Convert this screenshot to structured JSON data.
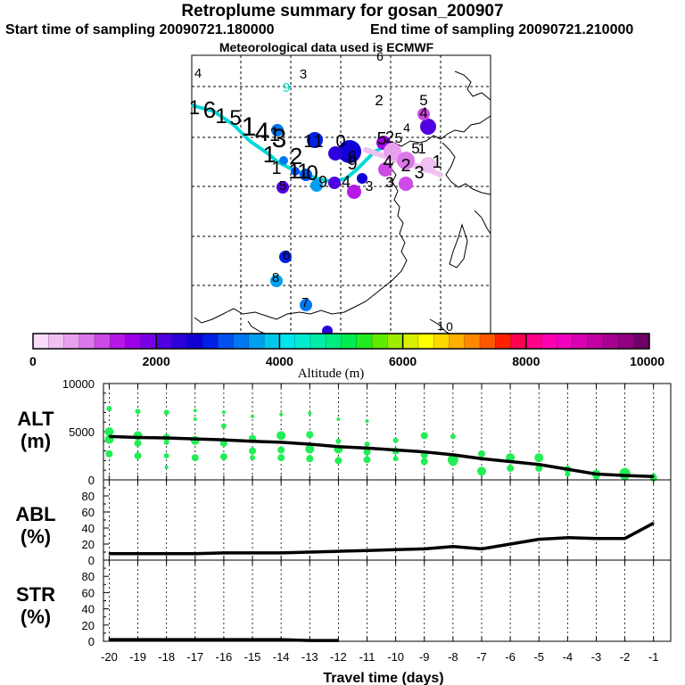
{
  "header": {
    "title": "Retroplume summary for gosan_200907",
    "start_label": "Start time of sampling 20090721.180000",
    "end_label": "End time of sampling 20090721.210000",
    "met_label": "Meteorological data used is ECMWF"
  },
  "colorbar": {
    "xlabel": "Altitude (m)",
    "ticks": [
      "0",
      "2000",
      "4000",
      "6000",
      "8000",
      "10000"
    ],
    "colors": [
      "#f8dcf8",
      "#f0c0f0",
      "#e8a0ee",
      "#dc78ea",
      "#cc4ae6",
      "#b818e6",
      "#9c00e8",
      "#7800e8",
      "#5000e0",
      "#2c00dc",
      "#1000d6",
      "#0020e6",
      "#0050f0",
      "#0078f0",
      "#00a0f0",
      "#00c8ec",
      "#00e4ec",
      "#00ecd0",
      "#00eca8",
      "#00ec80",
      "#00ec50",
      "#20ec20",
      "#60ec00",
      "#a0ec00",
      "#d8f000",
      "#ffff00",
      "#ffd800",
      "#ffb000",
      "#ff8800",
      "#ff5800",
      "#ff2000",
      "#ff0050",
      "#ff0088",
      "#ff00b0",
      "#f000c0",
      "#d800b0",
      "#c000a0",
      "#a80090",
      "#900080",
      "#700068"
    ]
  },
  "map": {
    "trajectory_labels": [
      {
        "t": "4",
        "x": 222,
        "y": 87,
        "s": 15
      },
      {
        "t": "3",
        "x": 340,
        "y": 88,
        "s": 15
      },
      {
        "t": "9",
        "x": 321,
        "y": 103,
        "s": 15,
        "c": "#00d8c0"
      },
      {
        "t": "2",
        "x": 425,
        "y": 118,
        "s": 17
      },
      {
        "t": "5",
        "x": 475,
        "y": 118,
        "s": 17
      },
      {
        "t": "4",
        "x": 475,
        "y": 132,
        "s": 17
      },
      {
        "t": "6",
        "x": 426,
        "y": 68,
        "s": 14
      },
      {
        "t": "1",
        "x": 218,
        "y": 128,
        "s": 22
      },
      {
        "t": "6",
        "x": 235,
        "y": 132,
        "s": 26
      },
      {
        "t": "1",
        "x": 248,
        "y": 138,
        "s": 24
      },
      {
        "t": "5",
        "x": 264,
        "y": 140,
        "s": 24
      },
      {
        "t": "1",
        "x": 279,
        "y": 152,
        "s": 30
      },
      {
        "t": "4",
        "x": 294,
        "y": 158,
        "s": 30
      },
      {
        "t": "1",
        "x": 308,
        "y": 158,
        "s": 22
      },
      {
        "t": "3",
        "x": 313,
        "y": 165,
        "s": 30
      },
      {
        "t": "1",
        "x": 302,
        "y": 182,
        "s": 26
      },
      {
        "t": "2",
        "x": 332,
        "y": 184,
        "s": 26
      },
      {
        "t": "1",
        "x": 310,
        "y": 195,
        "s": 20
      },
      {
        "t": "1",
        "x": 346,
        "y": 165,
        "s": 20
      },
      {
        "t": "1",
        "x": 357,
        "y": 165,
        "s": 20
      },
      {
        "t": "0",
        "x": 382,
        "y": 165,
        "s": 20
      },
      {
        "t": "6",
        "x": 395,
        "y": 182,
        "s": 18
      },
      {
        "t": "9",
        "x": 395,
        "y": 190,
        "s": 20
      },
      {
        "t": "5",
        "x": 428,
        "y": 162,
        "s": 20
      },
      {
        "t": "2",
        "x": 437,
        "y": 160,
        "s": 18
      },
      {
        "t": "5",
        "x": 447,
        "y": 160,
        "s": 16
      },
      {
        "t": "4",
        "x": 456,
        "y": 148,
        "s": 14
      },
      {
        "t": "5",
        "x": 466,
        "y": 172,
        "s": 17
      },
      {
        "t": "1",
        "x": 473,
        "y": 172,
        "s": 17
      },
      {
        "t": "1",
        "x": 490,
        "y": 188,
        "s": 20
      },
      {
        "t": "2",
        "x": 455,
        "y": 192,
        "s": 20
      },
      {
        "t": "4",
        "x": 435,
        "y": 188,
        "s": 20
      },
      {
        "t": "3",
        "x": 470,
        "y": 200,
        "s": 20
      },
      {
        "t": "1",
        "x": 330,
        "y": 200,
        "s": 24
      },
      {
        "t": "1",
        "x": 340,
        "y": 200,
        "s": 24
      },
      {
        "t": "0",
        "x": 350,
        "y": 202,
        "s": 24
      },
      {
        "t": "9",
        "x": 362,
        "y": 210,
        "s": 18
      },
      {
        "t": "4",
        "x": 388,
        "y": 210,
        "s": 18
      },
      {
        "t": "3",
        "x": 414,
        "y": 214,
        "s": 16
      },
      {
        "t": "3",
        "x": 437,
        "y": 210,
        "s": 17
      },
      {
        "t": "5",
        "x": 317,
        "y": 213,
        "s": 15
      },
      {
        "t": "6",
        "x": 321,
        "y": 291,
        "s": 15
      },
      {
        "t": "8",
        "x": 309,
        "y": 316,
        "s": 15
      },
      {
        "t": "7",
        "x": 342,
        "y": 344,
        "s": 15
      },
      {
        "t": "1",
        "x": 494,
        "y": 370,
        "s": 14
      },
      {
        "t": "0",
        "x": 504,
        "y": 371,
        "s": 14
      }
    ],
    "blobs": [
      {
        "x": 311,
        "y": 146,
        "r": 7,
        "c": "#0078f0"
      },
      {
        "x": 353,
        "y": 157,
        "r": 9,
        "c": "#0020e6"
      },
      {
        "x": 392,
        "y": 170,
        "r": 13,
        "c": "#1000d6"
      },
      {
        "x": 376,
        "y": 172,
        "r": 8,
        "c": "#2c00dc"
      },
      {
        "x": 480,
        "y": 142,
        "r": 9,
        "c": "#5000e0"
      },
      {
        "x": 475,
        "y": 128,
        "r": 7,
        "c": "#cc4ae6"
      },
      {
        "x": 430,
        "y": 160,
        "r": 8,
        "c": "#9c00e8"
      },
      {
        "x": 440,
        "y": 170,
        "r": 10,
        "c": "#e8a0ee"
      },
      {
        "x": 455,
        "y": 180,
        "r": 10,
        "c": "#dc78ea"
      },
      {
        "x": 480,
        "y": 185,
        "r": 9,
        "c": "#f0c0f0"
      },
      {
        "x": 432,
        "y": 190,
        "r": 8,
        "c": "#cc4ae6"
      },
      {
        "x": 455,
        "y": 206,
        "r": 8,
        "c": "#cc4ae6"
      },
      {
        "x": 397,
        "y": 215,
        "r": 8,
        "c": "#b818e6"
      },
      {
        "x": 375,
        "y": 205,
        "r": 7,
        "c": "#5000e0"
      },
      {
        "x": 355,
        "y": 208,
        "r": 7,
        "c": "#00a0f0"
      },
      {
        "x": 343,
        "y": 196,
        "r": 7,
        "c": "#0050f0"
      },
      {
        "x": 317,
        "y": 210,
        "r": 7,
        "c": "#5000e0"
      },
      {
        "x": 320,
        "y": 288,
        "r": 7,
        "c": "#0020e6"
      },
      {
        "x": 310,
        "y": 315,
        "r": 7,
        "c": "#00a0f0"
      },
      {
        "x": 343,
        "y": 342,
        "r": 7,
        "c": "#0078f0"
      },
      {
        "x": 367,
        "y": 371,
        "r": 6,
        "c": "#2c00dc"
      },
      {
        "x": 406,
        "y": 200,
        "r": 6,
        "c": "#1000d6"
      },
      {
        "x": 318,
        "y": 180,
        "r": 5,
        "c": "#0078f0"
      },
      {
        "x": 331,
        "y": 192,
        "r": 5,
        "c": "#0050f0"
      }
    ]
  },
  "chart_data": [
    {
      "type": "line",
      "title": "",
      "ylabel": "ALT (m)",
      "xlabel": "",
      "ylim": [
        0,
        10000
      ],
      "yticks": [
        "10000",
        "5000",
        "0"
      ],
      "xlim": [
        -20.2,
        -0.4
      ],
      "x": [
        -20,
        -19,
        -18,
        -17,
        -16,
        -15,
        -14,
        -13,
        -12,
        -11,
        -10,
        -9,
        -8,
        -7,
        -6,
        -5,
        -4,
        -3,
        -2,
        -1
      ],
      "series": [
        {
          "name": "mean",
          "values": [
            4500,
            4400,
            4350,
            4250,
            4150,
            4000,
            3900,
            3700,
            3450,
            3300,
            3100,
            2900,
            2600,
            2200,
            1900,
            1600,
            1100,
            600,
            450,
            350
          ]
        }
      ],
      "scatter": [
        {
          "x": -20,
          "y": 7400,
          "r": 3
        },
        {
          "x": -20,
          "y": 5000,
          "r": 5
        },
        {
          "x": -20,
          "y": 4200,
          "r": 5
        },
        {
          "x": -20,
          "y": 2700,
          "r": 4
        },
        {
          "x": -19,
          "y": 7100,
          "r": 3
        },
        {
          "x": -19,
          "y": 4600,
          "r": 5
        },
        {
          "x": -19,
          "y": 3800,
          "r": 4
        },
        {
          "x": -19,
          "y": 2500,
          "r": 4
        },
        {
          "x": -18,
          "y": 7000,
          "r": 3
        },
        {
          "x": -18,
          "y": 4400,
          "r": 4
        },
        {
          "x": -18,
          "y": 3900,
          "r": 3
        },
        {
          "x": -18,
          "y": 2500,
          "r": 3
        },
        {
          "x": -18,
          "y": 1300,
          "r": 2
        },
        {
          "x": -17,
          "y": 7200,
          "r": 2
        },
        {
          "x": -17,
          "y": 6300,
          "r": 2
        },
        {
          "x": -17,
          "y": 4100,
          "r": 5
        },
        {
          "x": -17,
          "y": 2300,
          "r": 4
        },
        {
          "x": -16,
          "y": 7000,
          "r": 2
        },
        {
          "x": -16,
          "y": 5600,
          "r": 3
        },
        {
          "x": -16,
          "y": 3800,
          "r": 4
        },
        {
          "x": -16,
          "y": 2400,
          "r": 4
        },
        {
          "x": -15,
          "y": 6600,
          "r": 2
        },
        {
          "x": -15,
          "y": 4300,
          "r": 4
        },
        {
          "x": -15,
          "y": 3000,
          "r": 4
        },
        {
          "x": -15,
          "y": 2300,
          "r": 3
        },
        {
          "x": -14,
          "y": 6800,
          "r": 2
        },
        {
          "x": -14,
          "y": 4600,
          "r": 5
        },
        {
          "x": -14,
          "y": 3100,
          "r": 4
        },
        {
          "x": -14,
          "y": 2300,
          "r": 4
        },
        {
          "x": -13,
          "y": 6900,
          "r": 2
        },
        {
          "x": -13,
          "y": 4700,
          "r": 4
        },
        {
          "x": -13,
          "y": 3200,
          "r": 5
        },
        {
          "x": -13,
          "y": 2200,
          "r": 4
        },
        {
          "x": -12,
          "y": 6300,
          "r": 2
        },
        {
          "x": -12,
          "y": 4000,
          "r": 3
        },
        {
          "x": -12,
          "y": 3200,
          "r": 5
        },
        {
          "x": -12,
          "y": 2000,
          "r": 4
        },
        {
          "x": -11,
          "y": 6100,
          "r": 2
        },
        {
          "x": -11,
          "y": 3700,
          "r": 3
        },
        {
          "x": -11,
          "y": 2900,
          "r": 4
        },
        {
          "x": -11,
          "y": 2100,
          "r": 4
        },
        {
          "x": -10,
          "y": 4100,
          "r": 3
        },
        {
          "x": -10,
          "y": 3000,
          "r": 4
        },
        {
          "x": -10,
          "y": 2200,
          "r": 3
        },
        {
          "x": -9,
          "y": 4600,
          "r": 4
        },
        {
          "x": -9,
          "y": 2600,
          "r": 4
        },
        {
          "x": -9,
          "y": 1900,
          "r": 4
        },
        {
          "x": -8,
          "y": 4500,
          "r": 3
        },
        {
          "x": -8,
          "y": 2100,
          "r": 6
        },
        {
          "x": -8,
          "y": 1900,
          "r": 5
        },
        {
          "x": -7,
          "y": 2700,
          "r": 4
        },
        {
          "x": -7,
          "y": 900,
          "r": 5
        },
        {
          "x": -6,
          "y": 2300,
          "r": 5
        },
        {
          "x": -6,
          "y": 1200,
          "r": 4
        },
        {
          "x": -5,
          "y": 2300,
          "r": 5
        },
        {
          "x": -5,
          "y": 1200,
          "r": 4
        },
        {
          "x": -4,
          "y": 1100,
          "r": 4
        },
        {
          "x": -4,
          "y": 600,
          "r": 3
        },
        {
          "x": -3,
          "y": 600,
          "r": 5
        },
        {
          "x": -3,
          "y": 200,
          "r": 3
        },
        {
          "x": -2,
          "y": 700,
          "r": 6
        },
        {
          "x": -2,
          "y": 400,
          "r": 5
        },
        {
          "x": -1,
          "y": 400,
          "r": 3
        },
        {
          "x": -1,
          "y": 200,
          "r": 4
        }
      ]
    },
    {
      "type": "line",
      "ylabel": "ABL (%)",
      "ylim": [
        0,
        100
      ],
      "yticks": [
        "80",
        "60",
        "40",
        "20",
        "0"
      ],
      "xlim": [
        -20.2,
        -0.4
      ],
      "x": [
        -20,
        -19,
        -18,
        -17,
        -16,
        -15,
        -14,
        -13,
        -12,
        -11,
        -10,
        -9,
        -8,
        -7,
        -6,
        -5,
        -4,
        -3,
        -2,
        -1
      ],
      "series": [
        {
          "name": "ABL",
          "values": [
            8,
            8,
            8,
            8,
            9,
            9,
            9,
            10,
            11,
            12,
            13,
            14,
            17,
            14,
            20,
            26,
            28,
            27,
            27,
            46
          ]
        }
      ]
    },
    {
      "type": "line",
      "ylabel": "STR (%)",
      "xlabel": "Travel time (days)",
      "ylim": [
        0,
        100
      ],
      "yticks": [
        "80",
        "60",
        "40",
        "20",
        "0"
      ],
      "xlim": [
        -20.2,
        -0.4
      ],
      "x": [
        -20,
        -19,
        -18,
        -17,
        -16,
        -15,
        -14,
        -13,
        -12
      ],
      "xticks": [
        "-20",
        "-19",
        "-18",
        "-17",
        "-16",
        "-15",
        "-14",
        "-13",
        "-12",
        "-11",
        "-10",
        "-9",
        "-8",
        "-7",
        "-6",
        "-5",
        "-4",
        "-3",
        "-2",
        "-1"
      ],
      "series": [
        {
          "name": "STR",
          "values": [
            2,
            2,
            2,
            2,
            2,
            2,
            2,
            1,
            1
          ]
        }
      ]
    }
  ]
}
